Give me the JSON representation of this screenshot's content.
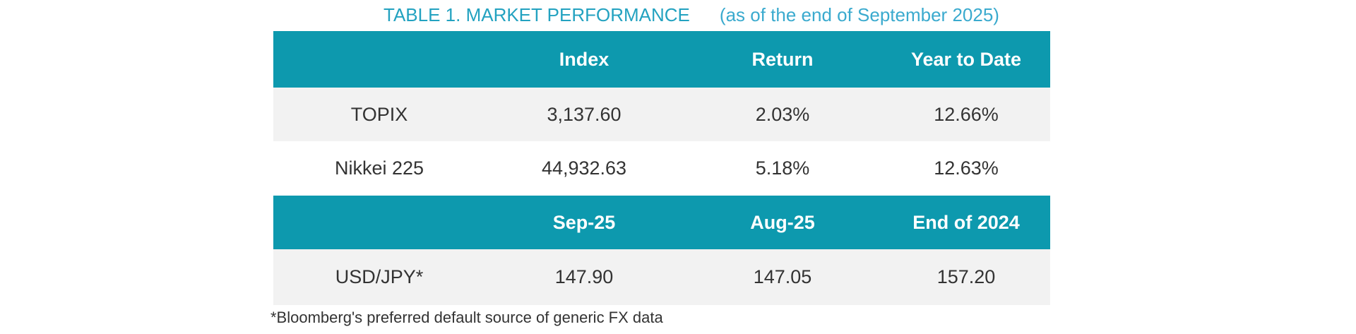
{
  "title": {
    "text": "TABLE 1. MARKET PERFORMANCE",
    "subtitle": "(as of the end of September 2025)"
  },
  "colors": {
    "header_bg": "#0D99AE",
    "header_text": "#FFFFFF",
    "alt_row_bg": "#F2F2F2",
    "body_text": "#333333",
    "title_main": "#23A2C0",
    "title_subtitle": "#3AAACE"
  },
  "index_table": {
    "headers": [
      "",
      "Index",
      "Return",
      "Year to Date"
    ],
    "rows": [
      [
        "TOPIX",
        "3,137.60",
        "2.03%",
        "12.66%"
      ],
      [
        "Nikkei 225",
        "44,932.63",
        "5.18%",
        "12.63%"
      ]
    ]
  },
  "fx_table": {
    "headers": [
      "",
      "Sep-25",
      "Aug-25",
      "End of 2024"
    ],
    "rows": [
      [
        "USD/JPY*",
        "147.90",
        "147.05",
        "157.20"
      ]
    ]
  },
  "footnote": "*Bloomberg's preferred default source of generic FX data"
}
